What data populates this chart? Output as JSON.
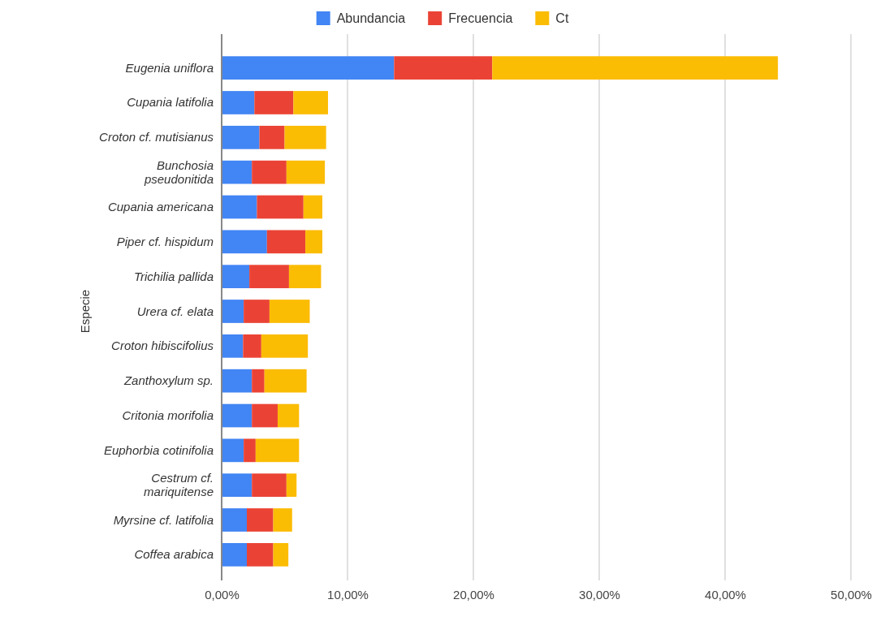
{
  "chart_data": {
    "type": "bar",
    "orientation": "horizontal",
    "stacked": true,
    "ylabel": "Especie",
    "categories": [
      "Eugenia uniflora",
      "Cupania latifolia",
      "Croton cf. mutisianus",
      "Bunchosia pseudonitida",
      "Cupania americana",
      "Piper cf. hispidum",
      "Trichilia pallida",
      "Urera cf. elata",
      "Croton hibiscifolius",
      "Zanthoxylum sp.",
      "Critonia morifolia",
      "Euphorbia cotinifolia",
      "Cestrum cf. mariquitense",
      "Myrsine cf. latifolia",
      "Coffea arabica"
    ],
    "series": [
      {
        "name": "Abundancia",
        "color": "#4285f4",
        "values": [
          13.7,
          2.6,
          3.0,
          2.4,
          2.8,
          3.6,
          2.2,
          1.75,
          1.7,
          2.4,
          2.4,
          1.75,
          2.4,
          2.0,
          2.0
        ]
      },
      {
        "name": "Frecuencia",
        "color": "#ea4335",
        "values": [
          7.8,
          3.1,
          2.0,
          2.75,
          3.7,
          3.05,
          3.15,
          2.05,
          1.45,
          1.0,
          2.05,
          0.95,
          2.75,
          2.1,
          2.1
        ]
      },
      {
        "name": "Ct",
        "color": "#fbbc04",
        "values": [
          22.7,
          2.75,
          3.3,
          3.05,
          1.5,
          1.35,
          2.55,
          3.2,
          3.7,
          3.35,
          1.7,
          3.45,
          0.8,
          1.5,
          1.2
        ]
      }
    ],
    "xlim": [
      0,
      50
    ],
    "xticks": [
      {
        "value": 0,
        "label": "0,00%"
      },
      {
        "value": 10,
        "label": "10,00%"
      },
      {
        "value": 20,
        "label": "20,00%"
      },
      {
        "value": 30,
        "label": "30,00%"
      },
      {
        "value": 40,
        "label": "40,00%"
      },
      {
        "value": 50,
        "label": "50,00%"
      }
    ],
    "grid": "x",
    "legend": "top"
  }
}
